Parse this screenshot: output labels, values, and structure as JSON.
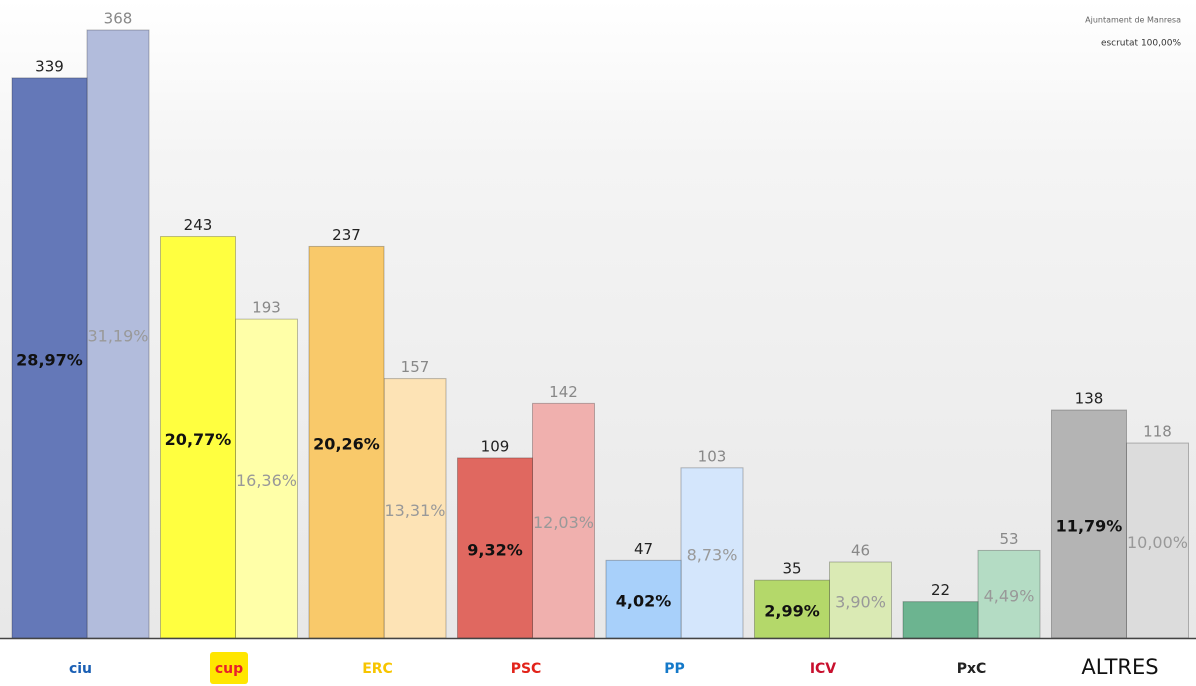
{
  "chart_data": {
    "type": "bar",
    "header": {
      "institution": "Ajuntament de Manresa",
      "status": "escrutat 100,00%"
    },
    "categories": [
      "ciu",
      "cup",
      "ERC",
      "PSC",
      "PP",
      "ICV",
      "PxC",
      "ALTRES"
    ],
    "series": [
      {
        "values": [
          339,
          243,
          237,
          109,
          47,
          35,
          22,
          138
        ],
        "shares": [
          "28,97%",
          "20,77%",
          "20,26%",
          "9,32%",
          "4,02%",
          "2,99%",
          null,
          "11,79%"
        ],
        "colors": [
          "#6478b8",
          "#ffff40",
          "#f9c96a",
          "#e06860",
          "#a8d0fa",
          "#b4d86a",
          "#6cb490",
          "#b4b4b4"
        ]
      },
      {
        "values": [
          368,
          193,
          157,
          142,
          103,
          46,
          53,
          118
        ],
        "shares": [
          "31,19%",
          "16,36%",
          "13,31%",
          "12,03%",
          "8,73%",
          "3,90%",
          "4,49%",
          "10,00%"
        ],
        "colors": [
          "#b2bcdc",
          "#ffffa8",
          "#fde3b5",
          "#f0b0ae",
          "#d4e6fc",
          "#daeab4",
          "#b4dcc4",
          "#dcdcdc"
        ]
      }
    ]
  }
}
